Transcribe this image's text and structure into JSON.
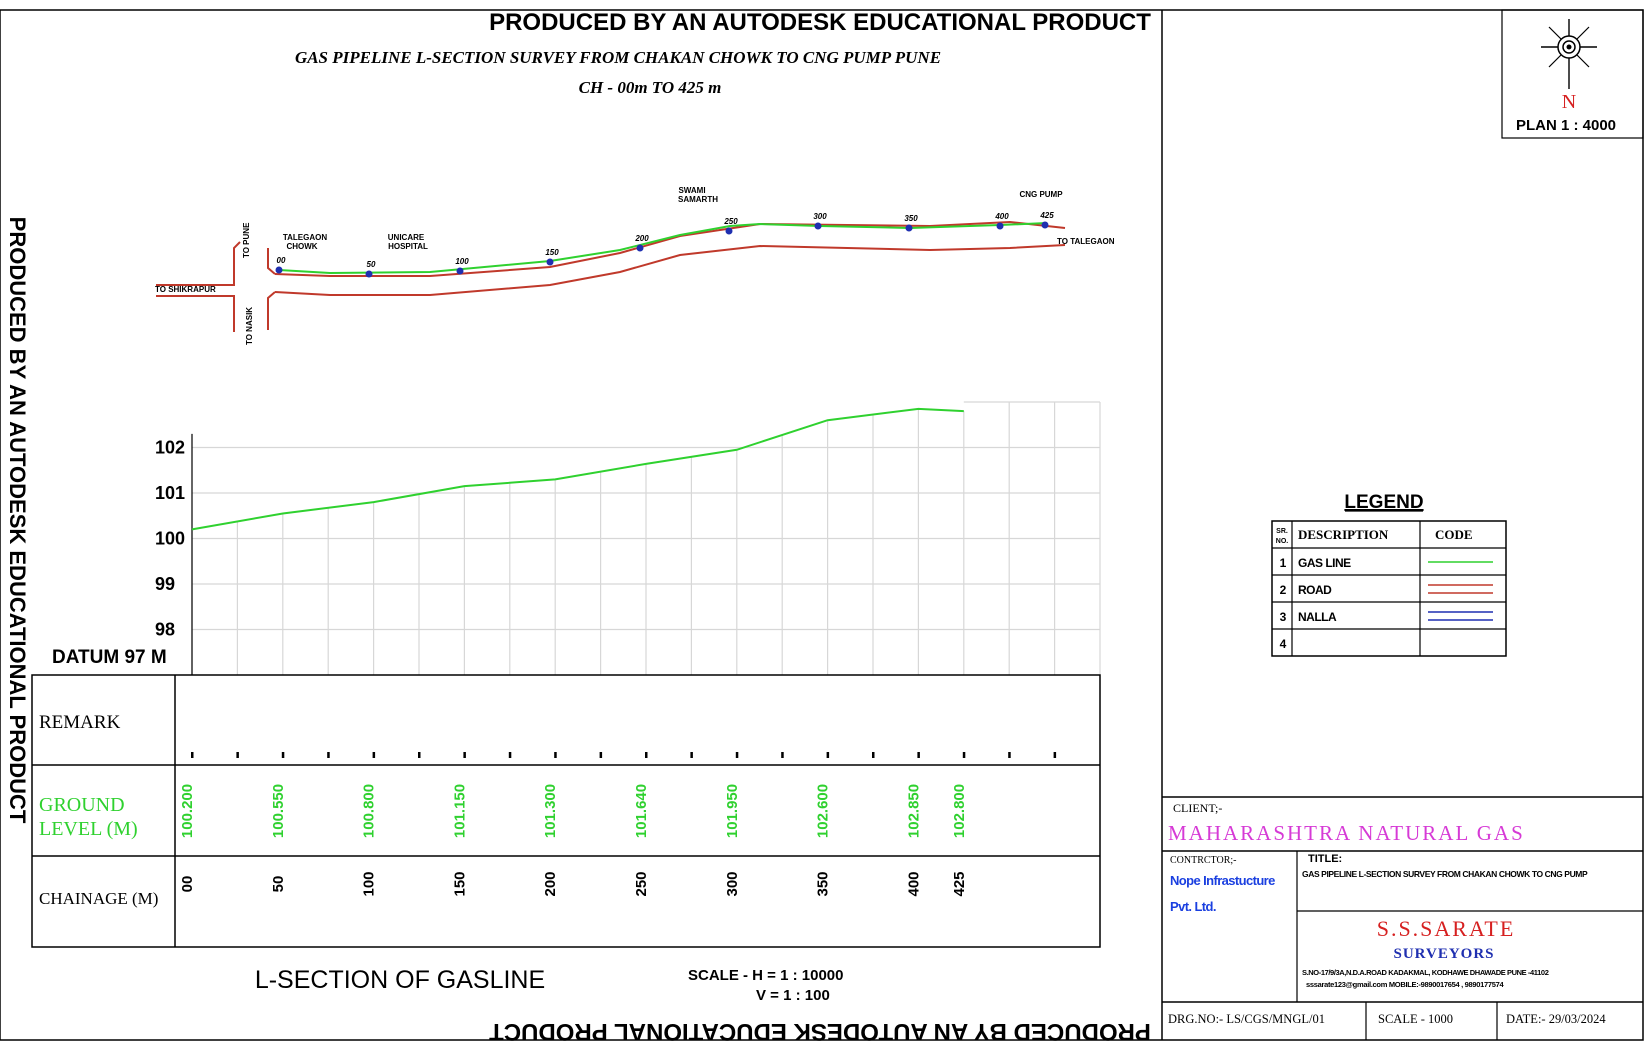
{
  "watermark": {
    "top": "PRODUCED BY AN AUTODESK EDUCATIONAL PRODUCT",
    "bottom": "PRODUCED BY AN AUTODESK EDUCATIONAL PRODUCT",
    "left": "PRODUCED BY AN AUTODESK EDUCATIONAL PRODUCT"
  },
  "header": {
    "title": "GAS PIPELINE L-SECTION SURVEY FROM CHAKAN CHOWK TO CNG PUMP PUNE",
    "subtitle": "CH - 00m TO 425 m"
  },
  "north": {
    "label": "N",
    "plan_scale": "PLAN 1 : 4000"
  },
  "plan": {
    "labels": {
      "to_pune": "TO PUNE",
      "to_nasik": "TO NASIK",
      "to_shikrapur": "TO SHIKRAPUR",
      "to_talegaon": "TO TALEGAON",
      "talegaon_chowk_1": "TALEGAON",
      "talegaon_chowk_2": "CHOWK",
      "unicare_1": "UNICARE",
      "unicare_2": "HOSPITAL",
      "swami_1": "SWAMI",
      "swami_2": "SAMARTH",
      "cng_pump": "CNG PUMP"
    },
    "chainage_points": [
      "00",
      "50",
      "100",
      "150",
      "200",
      "250",
      "300",
      "350",
      "400",
      "425"
    ]
  },
  "profile": {
    "y_ticks": [
      "102",
      "101",
      "100",
      "99",
      "98"
    ],
    "datum": "DATUM 97 M"
  },
  "chart_data": {
    "type": "line",
    "title": "L-SECTION OF GASLINE",
    "series": [
      {
        "name": "GROUND LEVEL (M)",
        "x": [
          0,
          50,
          100,
          150,
          200,
          250,
          300,
          350,
          400,
          425
        ],
        "values": [
          100.2,
          100.55,
          100.8,
          101.15,
          101.3,
          101.64,
          101.95,
          102.6,
          102.85,
          102.8
        ]
      }
    ],
    "ylim": [
      97,
      103
    ],
    "xlim": [
      0,
      500
    ],
    "grid": true
  },
  "table": {
    "remark_label": "REMARK",
    "ground_label_1": "GROUND",
    "ground_label_2": "LEVEL  (M)",
    "chainage_label": "CHAINAGE  (M)",
    "ground_values": [
      "100.200",
      "100.550",
      "100.800",
      "101.150",
      "101.300",
      "101.640",
      "101.950",
      "102.600",
      "102.850",
      "102.800"
    ],
    "chainage_values": [
      "00",
      "50",
      "100",
      "150",
      "200",
      "250",
      "300",
      "350",
      "400",
      "425"
    ]
  },
  "footer": {
    "lsection_title": "L-SECTION OF GASLINE",
    "scale_h": "SCALE -  H = 1 : 10000",
    "scale_v": "V = 1 : 100"
  },
  "legend": {
    "title": "LEGEND",
    "headers": {
      "srno_1": "SR.",
      "srno_2": "NO.",
      "description": "DESCRIPTION",
      "code": "CODE"
    },
    "rows": [
      {
        "no": "1",
        "description": "GAS LINE",
        "color": "#2fd12f"
      },
      {
        "no": "2",
        "description": "ROAD",
        "color": "#c0392b"
      },
      {
        "no": "3",
        "description": "NALLA",
        "color": "#1f2fb0"
      },
      {
        "no": "4",
        "description": "",
        "color": ""
      }
    ]
  },
  "titleblock": {
    "client_label": "CLIENT;-",
    "client_name": "MAHARASHTRA  NATURAL  GAS",
    "contractor_label": "CONTRCTOR;-",
    "contractor_1": "Nope Infrastucture",
    "contractor_2": "Pvt. Ltd.",
    "title_label": "TITLE:",
    "title_text": "GAS PIPELINE L-SECTION SURVEY FROM CHAKAN CHOWK TO CNG PUMP",
    "surveyor_name": "S.S.SARATE",
    "surveyor_sub": "SURVEYORS",
    "address": "S.NO-17/9/3A,N.D.A.ROAD KADAKMAL, KODHAWE DHAWADE  PUNE -41102",
    "contact": "sssarate123@gmail.com    MOBILE:-9890017654 ,  9890177574",
    "drg_no": "DRG.NO:-  LS/CGS/MNGL/01",
    "scale": "SCALE  -  1000",
    "date": "DATE:-  29/03/2024"
  },
  "colors": {
    "gas": "#2fd12f",
    "road": "#c0392b",
    "nalla": "#1f2fb0",
    "client": "#d63ad6",
    "sarate": "#d62020",
    "surveyors": "#1f2fb0",
    "contractor": "#1a3fe0"
  }
}
